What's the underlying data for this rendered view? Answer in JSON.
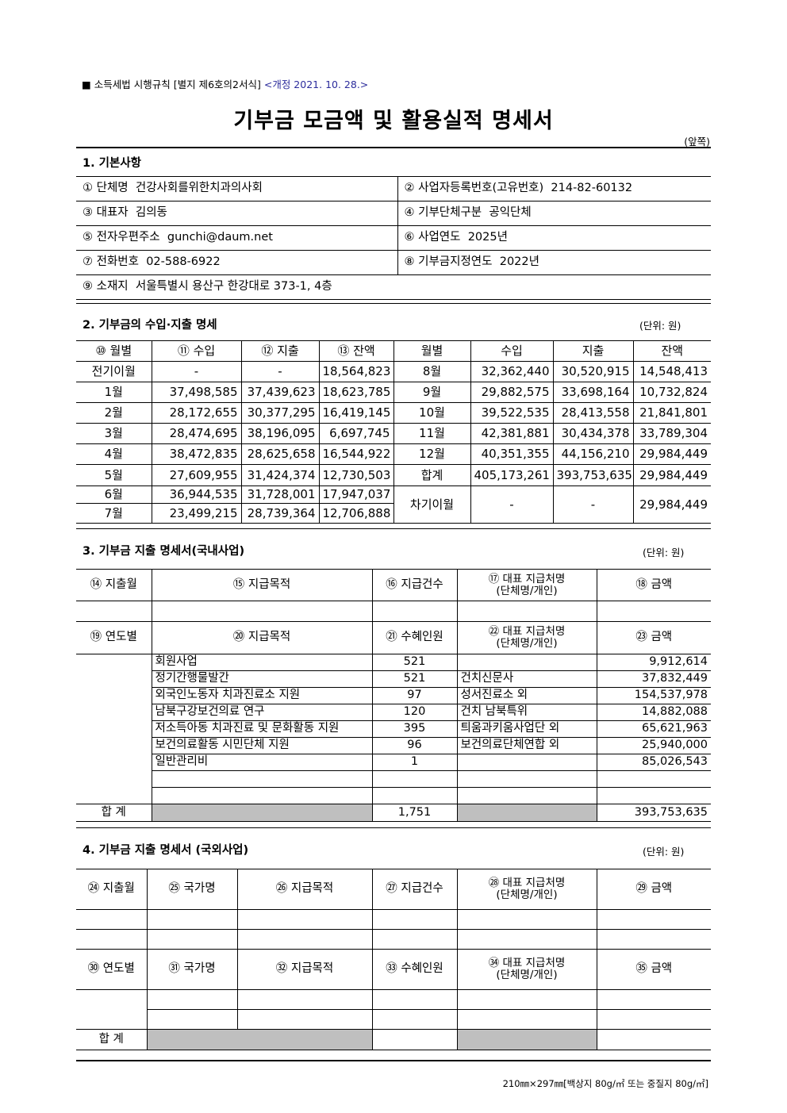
{
  "header": {
    "form_ref": "■ 소득세법 시행규칙 [별지 제6호의2서식]",
    "revision": "<개정 2021. 10. 28.>",
    "title": "기부금 모금액 및 활용실적 명세서",
    "page_side": "(앞쪽)"
  },
  "section1": {
    "heading": "1. 기본사항",
    "rows": [
      [
        {
          "label": "① 단체명",
          "value": "건강사회를위한치과의사회"
        },
        {
          "label": "② 사업자등록번호(고유번호)",
          "value": "214-82-60132"
        }
      ],
      [
        {
          "label": "③ 대표자",
          "value": "김의동"
        },
        {
          "label": "④ 기부단체구분",
          "value": "공익단체"
        }
      ],
      [
        {
          "label": "⑤ 전자우편주소",
          "value": "gunchi@daum.net"
        },
        {
          "label": "⑥ 사업연도",
          "value": "2025년"
        }
      ],
      [
        {
          "label": "⑦ 전화번호",
          "value": "02-588-6922"
        },
        {
          "label": "⑧ 기부금지정연도",
          "value": "2022년"
        }
      ]
    ],
    "address": {
      "label": "⑨ 소재지",
      "value": "서울특별시 용산구 한강대로 373-1, 4층"
    }
  },
  "section2": {
    "heading": "2. 기부금의 수입·지출 명세",
    "unit": "(단위: 원)",
    "columns": [
      "⑩ 월별",
      "⑪ 수입",
      "⑫ 지출",
      "⑬ 잔액",
      "월별",
      "수입",
      "지출",
      "잔액"
    ],
    "left_rows": [
      [
        "전기이월",
        "-",
        "-",
        "18,564,823"
      ],
      [
        "1월",
        "37,498,585",
        "37,439,623",
        "18,623,785"
      ],
      [
        "2월",
        "28,172,655",
        "30,377,295",
        "16,419,145"
      ],
      [
        "3월",
        "28,474,695",
        "38,196,095",
        "6,697,745"
      ],
      [
        "4월",
        "38,472,835",
        "28,625,658",
        "16,544,922"
      ],
      [
        "5월",
        "27,609,955",
        "31,424,374",
        "12,730,503"
      ],
      [
        "6월",
        "36,944,535",
        "31,728,001",
        "17,947,037"
      ],
      [
        "7월",
        "23,499,215",
        "28,739,364",
        "12,706,888"
      ]
    ],
    "right_rows": [
      [
        "8월",
        "32,362,440",
        "30,520,915",
        "14,548,413"
      ],
      [
        "9월",
        "29,882,575",
        "33,698,164",
        "10,732,824"
      ],
      [
        "10월",
        "39,522,535",
        "28,413,558",
        "21,841,801"
      ],
      [
        "11월",
        "42,381,881",
        "30,434,378",
        "33,789,304"
      ],
      [
        "12월",
        "40,351,355",
        "44,156,210",
        "29,984,449"
      ],
      [
        "합계",
        "405,173,261",
        "393,753,635",
        "29,984,449"
      ],
      [
        "차기이월",
        "-",
        "-",
        "29,984,449"
      ]
    ]
  },
  "section3": {
    "heading": "3. 기부금 지출 명세서(국내사업)",
    "unit": "(단위: 원)",
    "columns1": [
      "⑭ 지출월",
      "⑮ 지급목적",
      "⑯ 지급건수",
      "⑰ 대표 지급처명",
      "(단체명/개인)",
      "⑱ 금액"
    ],
    "columns2": [
      "⑲ 연도별",
      "⑳ 지급목적",
      "㉑ 수혜인원",
      "㉒ 대표 지급처명",
      "(단체명/개인)",
      "㉓ 금액"
    ],
    "rows": [
      [
        "회원사업",
        "521",
        "",
        "9,912,614"
      ],
      [
        "정기간행물발간",
        "521",
        "건치신문사",
        "37,832,449"
      ],
      [
        "외국인노동자 치과진료소 지원",
        "97",
        "성서진료소 외",
        "154,537,978"
      ],
      [
        "남북구강보건의료 연구",
        "120",
        "건치 남북특위",
        "14,882,088"
      ],
      [
        "저소득아동 치과진료 및 문화활동 지원",
        "395",
        "틔움과키움사업단 외",
        "65,621,963"
      ],
      [
        "보건의료활동 시민단체 지원",
        "96",
        "보건의료단체연합 외",
        "25,940,000"
      ],
      [
        "일반관리비",
        "1",
        "",
        "85,026,543"
      ],
      [
        "",
        "",
        "",
        ""
      ],
      [
        "",
        "",
        "",
        ""
      ]
    ],
    "total": {
      "label": "합 계",
      "count": "1,751",
      "amount": "393,753,635"
    }
  },
  "section4": {
    "heading": "4. 기부금 지출 명세서 (국외사업)",
    "unit": "(단위: 원)",
    "columns1": [
      "㉔ 지출월",
      "㉕ 국가명",
      "㉖ 지급목적",
      "㉗ 지급건수",
      "㉘ 대표 지급처명",
      "(단체명/개인)",
      "㉙ 금액"
    ],
    "columns2": [
      "㉚ 연도별",
      "㉛ 국가명",
      "㉜ 지급목적",
      "㉝ 수혜인원",
      "㉞ 대표 지급처명",
      "(단체명/개인)",
      "㉟ 금액"
    ],
    "total_label": "합 계"
  },
  "footer": "210㎜×297㎜[백상지 80g/㎡ 또는 중질지 80g/㎡]"
}
